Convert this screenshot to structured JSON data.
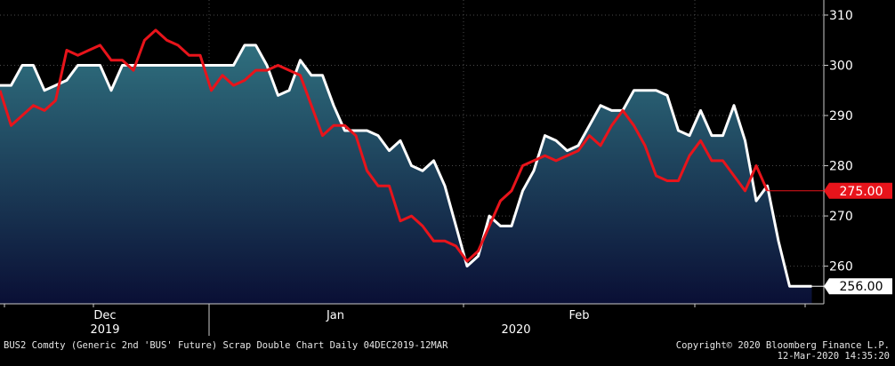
{
  "footer": {
    "description": "BUS2 Comdty (Generic 2nd 'BUS' Future) Scrap Double Chart  Daily 04DEC2019-12MAR",
    "copyright": "Copyright© 2020 Bloomberg Finance L.P.",
    "timestamp": "12-Mar-2020 14:35:20"
  },
  "colors": {
    "background": "#000000",
    "area_top": "#2f6f7e",
    "area_bottom": "#0a0f35",
    "white_series": "#ffffff",
    "red_series": "#e8141b",
    "grid": "#4a4a4a"
  },
  "chart_data": {
    "type": "line",
    "title": "",
    "xlabel": "",
    "ylabel": "",
    "ylim": [
      252.5,
      313
    ],
    "y_ticks": [
      260,
      270,
      280,
      290,
      300,
      310
    ],
    "x_month_labels": [
      "Dec",
      "Jan",
      "Feb"
    ],
    "x_year_labels": [
      "2019",
      "2020"
    ],
    "grid": true,
    "series": [
      {
        "color": "#ffffff",
        "style": "area",
        "last_label": "256.00",
        "values": [
          296,
          296,
          300,
          300,
          295,
          296,
          297,
          300,
          300,
          300,
          295,
          300,
          300,
          300,
          300,
          300,
          300,
          300,
          300,
          300,
          300,
          300,
          304,
          304,
          300,
          294,
          295,
          301,
          298,
          298,
          292,
          287,
          287,
          287,
          286,
          283,
          285,
          280,
          279,
          281,
          276,
          268,
          260,
          262,
          270,
          268,
          268,
          275,
          279,
          286,
          285,
          283,
          284,
          288,
          292,
          291,
          291,
          295,
          295,
          295,
          294,
          287,
          286,
          291,
          286,
          286,
          292,
          285,
          273,
          276,
          265,
          256,
          256,
          256
        ]
      },
      {
        "color": "#e8141b",
        "style": "line",
        "last_label": "275.00",
        "values": [
          295,
          288,
          290,
          292,
          291,
          293,
          303,
          302,
          303,
          304,
          301,
          301,
          299,
          305,
          307,
          305,
          304,
          302,
          302,
          295,
          298,
          296,
          297,
          299,
          299,
          300,
          299,
          298,
          292,
          286,
          288,
          288,
          286,
          279,
          276,
          276,
          269,
          270,
          268,
          265,
          265,
          264,
          261,
          263,
          268,
          273,
          275,
          280,
          281,
          282,
          281,
          282,
          283,
          286,
          284,
          288,
          291,
          288,
          284,
          278,
          277,
          277,
          282,
          285,
          281,
          281,
          278,
          275,
          280,
          275
        ]
      }
    ]
  }
}
